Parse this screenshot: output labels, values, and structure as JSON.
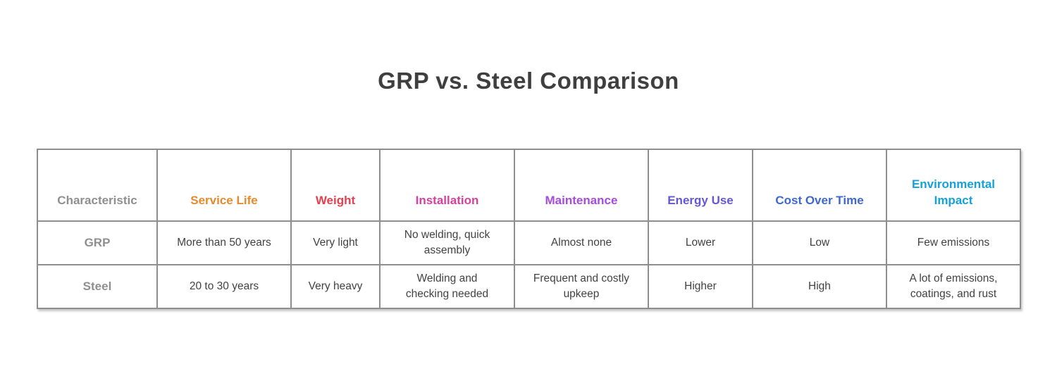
{
  "title": "GRP vs. Steel Comparison",
  "chart_data": {
    "type": "table",
    "title": "GRP vs. Steel Comparison",
    "columns": [
      {
        "label": "Characteristic",
        "color": "#8f8f8f"
      },
      {
        "label": "Service Life",
        "color": "#e8892d"
      },
      {
        "label": "Weight",
        "color": "#e5404e"
      },
      {
        "label": "Installation",
        "color": "#d6409f"
      },
      {
        "label": "Maintenance",
        "color": "#a84bd8"
      },
      {
        "label": "Energy Use",
        "color": "#6257d6"
      },
      {
        "label": "Cost Over Time",
        "color": "#3e68d0"
      },
      {
        "label": "Environmental\nImpact",
        "color": "#14a1d9"
      }
    ],
    "rows": [
      {
        "label": "GRP",
        "cells": [
          "More than 50 years",
          "Very light",
          "No welding, quick\nassembly",
          "Almost none",
          "Lower",
          "Low",
          "Few emissions"
        ]
      },
      {
        "label": "Steel",
        "cells": [
          "20 to 30 years",
          "Very heavy",
          "Welding and\nchecking needed",
          "Frequent and costly\nupkeep",
          "Higher",
          "High",
          "A lot of emissions,\ncoatings, and rust"
        ]
      }
    ]
  },
  "colors": {
    "border": "#8e8e8e",
    "title_text": "#3f3f3f",
    "body_text": "#424242",
    "row_label_text": "#8f8f8f",
    "background": "#ffffff"
  }
}
